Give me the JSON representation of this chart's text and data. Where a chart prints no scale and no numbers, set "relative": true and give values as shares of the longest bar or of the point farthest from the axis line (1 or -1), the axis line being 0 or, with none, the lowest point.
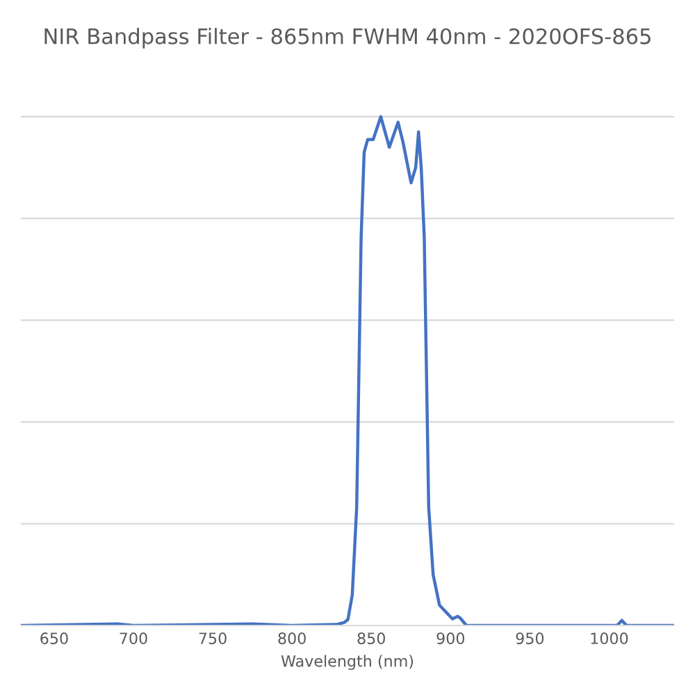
{
  "chart_data": {
    "type": "line",
    "title": "NIR Bandpass Filter - 865nm FWHM 40nm - 2020OFS-865",
    "xlabel": "Wavelength (nm)",
    "relative": true,
    "grid": "y",
    "legend": false,
    "x": [
      630,
      690,
      700,
      775,
      800,
      828,
      833,
      835.3,
      838,
      840.8,
      843.6,
      845.5,
      847.7,
      851.2,
      856,
      861.4,
      866.9,
      870,
      875.1,
      878,
      879.8,
      881.5,
      883.4,
      886.2,
      889,
      893,
      901.2,
      904.5,
      906,
      910,
      1005,
      1008,
      1011,
      1041
    ],
    "series": [
      {
        "color": "#4472c4",
        "values": [
          0,
          0.003,
          0,
          0.003,
          0,
          0.002,
          0.006,
          0.012,
          0.06,
          0.233,
          0.763,
          0.93,
          0.955,
          0.955,
          1.0,
          0.94,
          0.989,
          0.95,
          0.87,
          0.9,
          0.97,
          0.9,
          0.763,
          0.233,
          0.1,
          0.04,
          0.013,
          0.018,
          0.015,
          0,
          0,
          0.01,
          0,
          0
        ]
      }
    ],
    "xlim": [
      629,
      1041
    ],
    "xticks": [
      650,
      700,
      750,
      800,
      850,
      900,
      950,
      1000
    ]
  }
}
